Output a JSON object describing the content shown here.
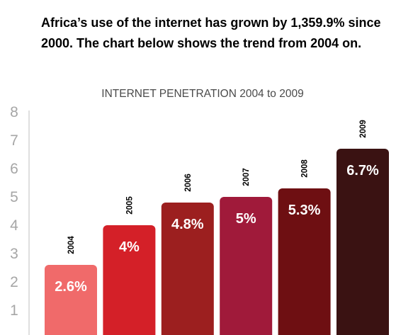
{
  "heading": "Africa’s use of the internet has grown by 1,359.9% since 2000.  The chart below shows the trend from 2004 on.",
  "chart_data": {
    "type": "bar",
    "title": "INTERNET PENETRATION 2004 to 2009",
    "xlabel": "",
    "ylabel": "",
    "categories": [
      "2004",
      "2005",
      "2006",
      "2007",
      "2008",
      "2009"
    ],
    "values": [
      2.6,
      4,
      4.8,
      5,
      5.3,
      6.7
    ],
    "data_labels": [
      "2.6%",
      "4%",
      "4.8%",
      "5%",
      "5.3%",
      "6.7%"
    ],
    "bar_colors": [
      "#f06a6a",
      "#d42028",
      "#9c1f1f",
      "#a01a3a",
      "#6e0f12",
      "#3a1212"
    ],
    "ylim": [
      0,
      8
    ],
    "yticks": [
      "1",
      "2",
      "3",
      "4",
      "5",
      "6",
      "7",
      "8"
    ],
    "grid": false,
    "legend": "none"
  }
}
